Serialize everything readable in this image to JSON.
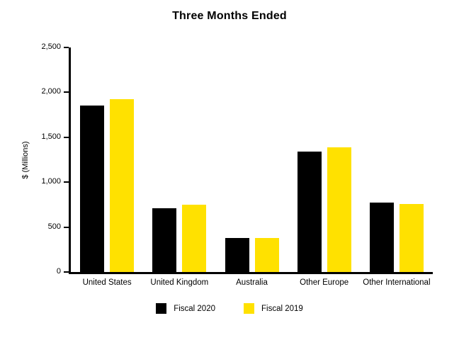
{
  "chart_data": {
    "type": "bar",
    "title": "Three Months Ended",
    "xlabel": "",
    "ylabel": "$ (Millions)",
    "categories": [
      "United States",
      "United Kingdom",
      "Australia",
      "Other Europe",
      "Other International"
    ],
    "series": [
      {
        "name": "Fiscal 2020",
        "color": "#000000",
        "values": [
          1850,
          710,
          380,
          1340,
          770
        ]
      },
      {
        "name": "Fiscal 2019",
        "color": "#FFE100",
        "values": [
          1925,
          750,
          380,
          1390,
          755
        ]
      }
    ],
    "ylim": [
      0,
      2500
    ],
    "yticks": [
      0,
      500,
      1000,
      1500,
      2000,
      2500
    ],
    "ytick_labels": [
      "0",
      "500",
      "1,000",
      "1,500",
      "2,000",
      "2,500"
    ],
    "grid": false,
    "legend_position": "bottom"
  }
}
